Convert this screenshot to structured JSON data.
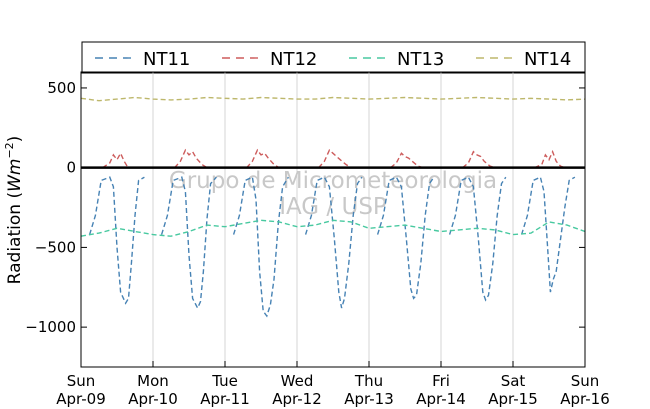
{
  "chart_data": {
    "type": "line",
    "ylabel": "Radiation (Wm^-2)",
    "ylabel_main": "Radiation (",
    "ylabel_unit": "Wm",
    "ylabel_exp": "−2",
    "ylabel_close": ")",
    "ylim": [
      -1250,
      600
    ],
    "yticks": [
      500,
      0,
      -500,
      -1000
    ],
    "ytick_labels": [
      "500",
      "0",
      "−500",
      "−1000"
    ],
    "xlim": [
      0,
      7
    ],
    "xticks": [
      {
        "x": 0,
        "day": "Sun",
        "date": "Apr-09"
      },
      {
        "x": 1,
        "day": "Mon",
        "date": "Apr-10"
      },
      {
        "x": 2,
        "day": "Tue",
        "date": "Apr-11"
      },
      {
        "x": 3,
        "day": "Wed",
        "date": "Apr-12"
      },
      {
        "x": 4,
        "day": "Thu",
        "date": "Apr-13"
      },
      {
        "x": 5,
        "day": "Fri",
        "date": "Apr-14"
      },
      {
        "x": 6,
        "day": "Sat",
        "date": "Apr-15"
      },
      {
        "x": 7,
        "day": "Sun",
        "date": "Apr-16"
      }
    ],
    "grid": "vertical",
    "zero_line": true,
    "legend_position": "top",
    "watermark": [
      "Grupo de Micrometeorologia",
      "IAG / USP"
    ],
    "series": [
      {
        "name": "NT11",
        "color": "#4682b4",
        "note_units": "values in Wm-2 at day-fractions",
        "days": [
          {
            "x": [
              0.12,
              0.2,
              0.28,
              0.4,
              0.45,
              0.5,
              0.55,
              0.62,
              0.66,
              0.7,
              0.75,
              0.8,
              0.88
            ],
            "y": [
              -420,
              -300,
              -80,
              -60,
              -120,
              -500,
              -780,
              -850,
              -820,
              -600,
              -300,
              -80,
              -60
            ]
          },
          {
            "x": [
              1.12,
              1.2,
              1.28,
              1.4,
              1.45,
              1.5,
              1.55,
              1.62,
              1.66,
              1.7,
              1.75,
              1.8,
              1.88
            ],
            "y": [
              -420,
              -300,
              -80,
              -60,
              -150,
              -550,
              -820,
              -880,
              -840,
              -650,
              -320,
              -100,
              -60
            ]
          },
          {
            "x": [
              2.12,
              2.2,
              2.28,
              2.38,
              2.43,
              2.48,
              2.53,
              2.58,
              2.63,
              2.68,
              2.74,
              2.8,
              2.88
            ],
            "y": [
              -420,
              -300,
              -80,
              -60,
              -200,
              -650,
              -900,
              -930,
              -860,
              -700,
              -350,
              -120,
              -60
            ]
          },
          {
            "x": [
              3.12,
              3.2,
              3.28,
              3.38,
              3.45,
              3.52,
              3.58,
              3.62,
              3.66,
              3.72,
              3.78,
              3.84,
              3.9
            ],
            "y": [
              -420,
              -300,
              -80,
              -60,
              -120,
              -450,
              -780,
              -880,
              -820,
              -600,
              -300,
              -100,
              -60
            ]
          },
          {
            "x": [
              4.12,
              4.2,
              4.28,
              4.38,
              4.45,
              4.52,
              4.58,
              4.62,
              4.66,
              4.72,
              4.78,
              4.84,
              4.9
            ],
            "y": [
              -420,
              -300,
              -80,
              -60,
              -120,
              -450,
              -760,
              -820,
              -800,
              -600,
              -300,
              -100,
              -60
            ]
          },
          {
            "x": [
              5.12,
              5.2,
              5.28,
              5.38,
              5.45,
              5.52,
              5.58,
              5.62,
              5.66,
              5.72,
              5.78,
              5.84,
              5.9
            ],
            "y": [
              -420,
              -300,
              -80,
              -60,
              -120,
              -450,
              -780,
              -830,
              -800,
              -600,
              -300,
              -100,
              -60
            ]
          },
          {
            "x": [
              6.12,
              6.2,
              6.28,
              6.38,
              6.43,
              6.48,
              6.52,
              6.56,
              6.6,
              6.66,
              6.72,
              6.78,
              6.86
            ],
            "y": [
              -420,
              -300,
              -80,
              -60,
              -150,
              -500,
              -780,
              -700,
              -650,
              -450,
              -250,
              -80,
              -60
            ]
          }
        ]
      },
      {
        "name": "NT12",
        "color": "#cd5c5c",
        "days": [
          {
            "x": [
              0.3,
              0.4,
              0.45,
              0.5,
              0.55,
              0.6,
              0.64,
              0.7
            ],
            "y": [
              0,
              30,
              80,
              50,
              90,
              40,
              10,
              0
            ]
          },
          {
            "x": [
              1.3,
              1.38,
              1.45,
              1.5,
              1.55,
              1.6,
              1.68,
              1.75
            ],
            "y": [
              0,
              40,
              110,
              80,
              100,
              60,
              20,
              0
            ]
          },
          {
            "x": [
              2.3,
              2.38,
              2.45,
              2.5,
              2.55,
              2.6,
              2.68,
              2.75
            ],
            "y": [
              0,
              40,
              110,
              80,
              90,
              60,
              20,
              0
            ]
          },
          {
            "x": [
              3.3,
              3.38,
              3.45,
              3.5,
              3.55,
              3.6,
              3.68,
              3.75
            ],
            "y": [
              0,
              40,
              110,
              90,
              70,
              50,
              20,
              0
            ]
          },
          {
            "x": [
              4.3,
              4.38,
              4.45,
              4.5,
              4.55,
              4.6,
              4.68,
              4.75
            ],
            "y": [
              0,
              30,
              90,
              70,
              60,
              40,
              10,
              0
            ]
          },
          {
            "x": [
              5.3,
              5.38,
              5.45,
              5.5,
              5.55,
              5.6,
              5.68,
              5.75
            ],
            "y": [
              0,
              30,
              100,
              80,
              70,
              40,
              10,
              0
            ]
          },
          {
            "x": [
              6.3,
              6.4,
              6.45,
              6.5,
              6.55,
              6.6,
              6.66,
              6.72
            ],
            "y": [
              0,
              20,
              80,
              50,
              100,
              40,
              10,
              0
            ]
          }
        ]
      },
      {
        "name": "NT13",
        "color": "#48c9a0",
        "x": [
          0,
          0.25,
          0.5,
          0.75,
          1.0,
          1.25,
          1.5,
          1.75,
          2.0,
          2.25,
          2.5,
          2.75,
          3.0,
          3.25,
          3.5,
          3.75,
          4.0,
          4.25,
          4.5,
          4.75,
          5.0,
          5.25,
          5.5,
          5.75,
          6.0,
          6.25,
          6.5,
          6.75,
          7.0
        ],
        "y": [
          -430,
          -410,
          -380,
          -400,
          -420,
          -430,
          -400,
          -360,
          -370,
          -350,
          -330,
          -340,
          -370,
          -360,
          -330,
          -340,
          -380,
          -370,
          -360,
          -380,
          -400,
          -390,
          -380,
          -390,
          -420,
          -410,
          -340,
          -360,
          -400
        ]
      },
      {
        "name": "NT14",
        "color": "#bdb76b",
        "x": [
          0,
          0.25,
          0.5,
          0.75,
          1.0,
          1.25,
          1.5,
          1.75,
          2.0,
          2.25,
          2.5,
          2.75,
          3.0,
          3.25,
          3.5,
          3.75,
          4.0,
          4.25,
          4.5,
          4.75,
          5.0,
          5.25,
          5.5,
          5.75,
          6.0,
          6.25,
          6.5,
          6.75,
          7.0
        ],
        "y": [
          435,
          420,
          430,
          440,
          430,
          425,
          430,
          440,
          435,
          430,
          440,
          435,
          430,
          430,
          440,
          435,
          430,
          435,
          440,
          435,
          430,
          435,
          440,
          435,
          430,
          435,
          430,
          425,
          430
        ]
      }
    ]
  }
}
